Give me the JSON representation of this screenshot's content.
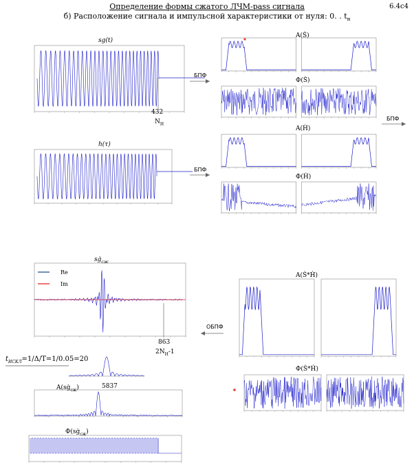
{
  "header": {
    "title": "Определение формы сжатого ЛЧМ-pass сигнала",
    "subtitle": "б) Расположение сигнала и импульсной характеристики от нуля:  0. . t",
    "subtitle_sub": "н",
    "page_id": "6.4c4"
  },
  "panels": {
    "sg_title": "sg(t)",
    "sg_marker_value": "432",
    "sg_marker_label": "N",
    "sg_marker_sub": "H",
    "h_title": "h(τ)",
    "amp_s_title": "A(Ṡ)",
    "phase_s_title": "Φ(Ṡ)",
    "amp_h_title": "A(Ḣ)",
    "phase_h_title": "Φ(Ḣ)",
    "sgcomp_title": "sġ",
    "sgcomp_sub": "сж",
    "legend_re": "Re",
    "legend_im": "Im",
    "sgcomp_marker_value": "863",
    "sgcomp_marker_label": "2N",
    "sgcomp_marker_sub": "H",
    "sgcomp_marker_suffix": "-1",
    "t_formula": "=1/Δ/T=1/0.05=20",
    "t_formula_prefix": "t",
    "t_formula_sub": "ИСКЛ",
    "amp_comp_title": "A(sġ",
    "amp_comp_sub": "сж",
    "amp_comp_close": ")",
    "amp_comp_peak": "5837",
    "phase_comp_title": "Φ(sġ",
    "phase_comp_sub": "сж",
    "phase_comp_close": ")",
    "amp_prod_title": "A(Ṡ*Ḣ)",
    "phase_prod_title": "Φ(Ṡ*Ḣ)"
  },
  "arrows": {
    "fft1": "БПФ",
    "fft2": "БПФ",
    "fft3": "БПФ",
    "ifft": "ОБПФ"
  },
  "colors": {
    "signal": "#1c1ccc",
    "re_line": "#1f4e8c",
    "im_line": "#e02020",
    "marker_red": "#e04040"
  }
}
